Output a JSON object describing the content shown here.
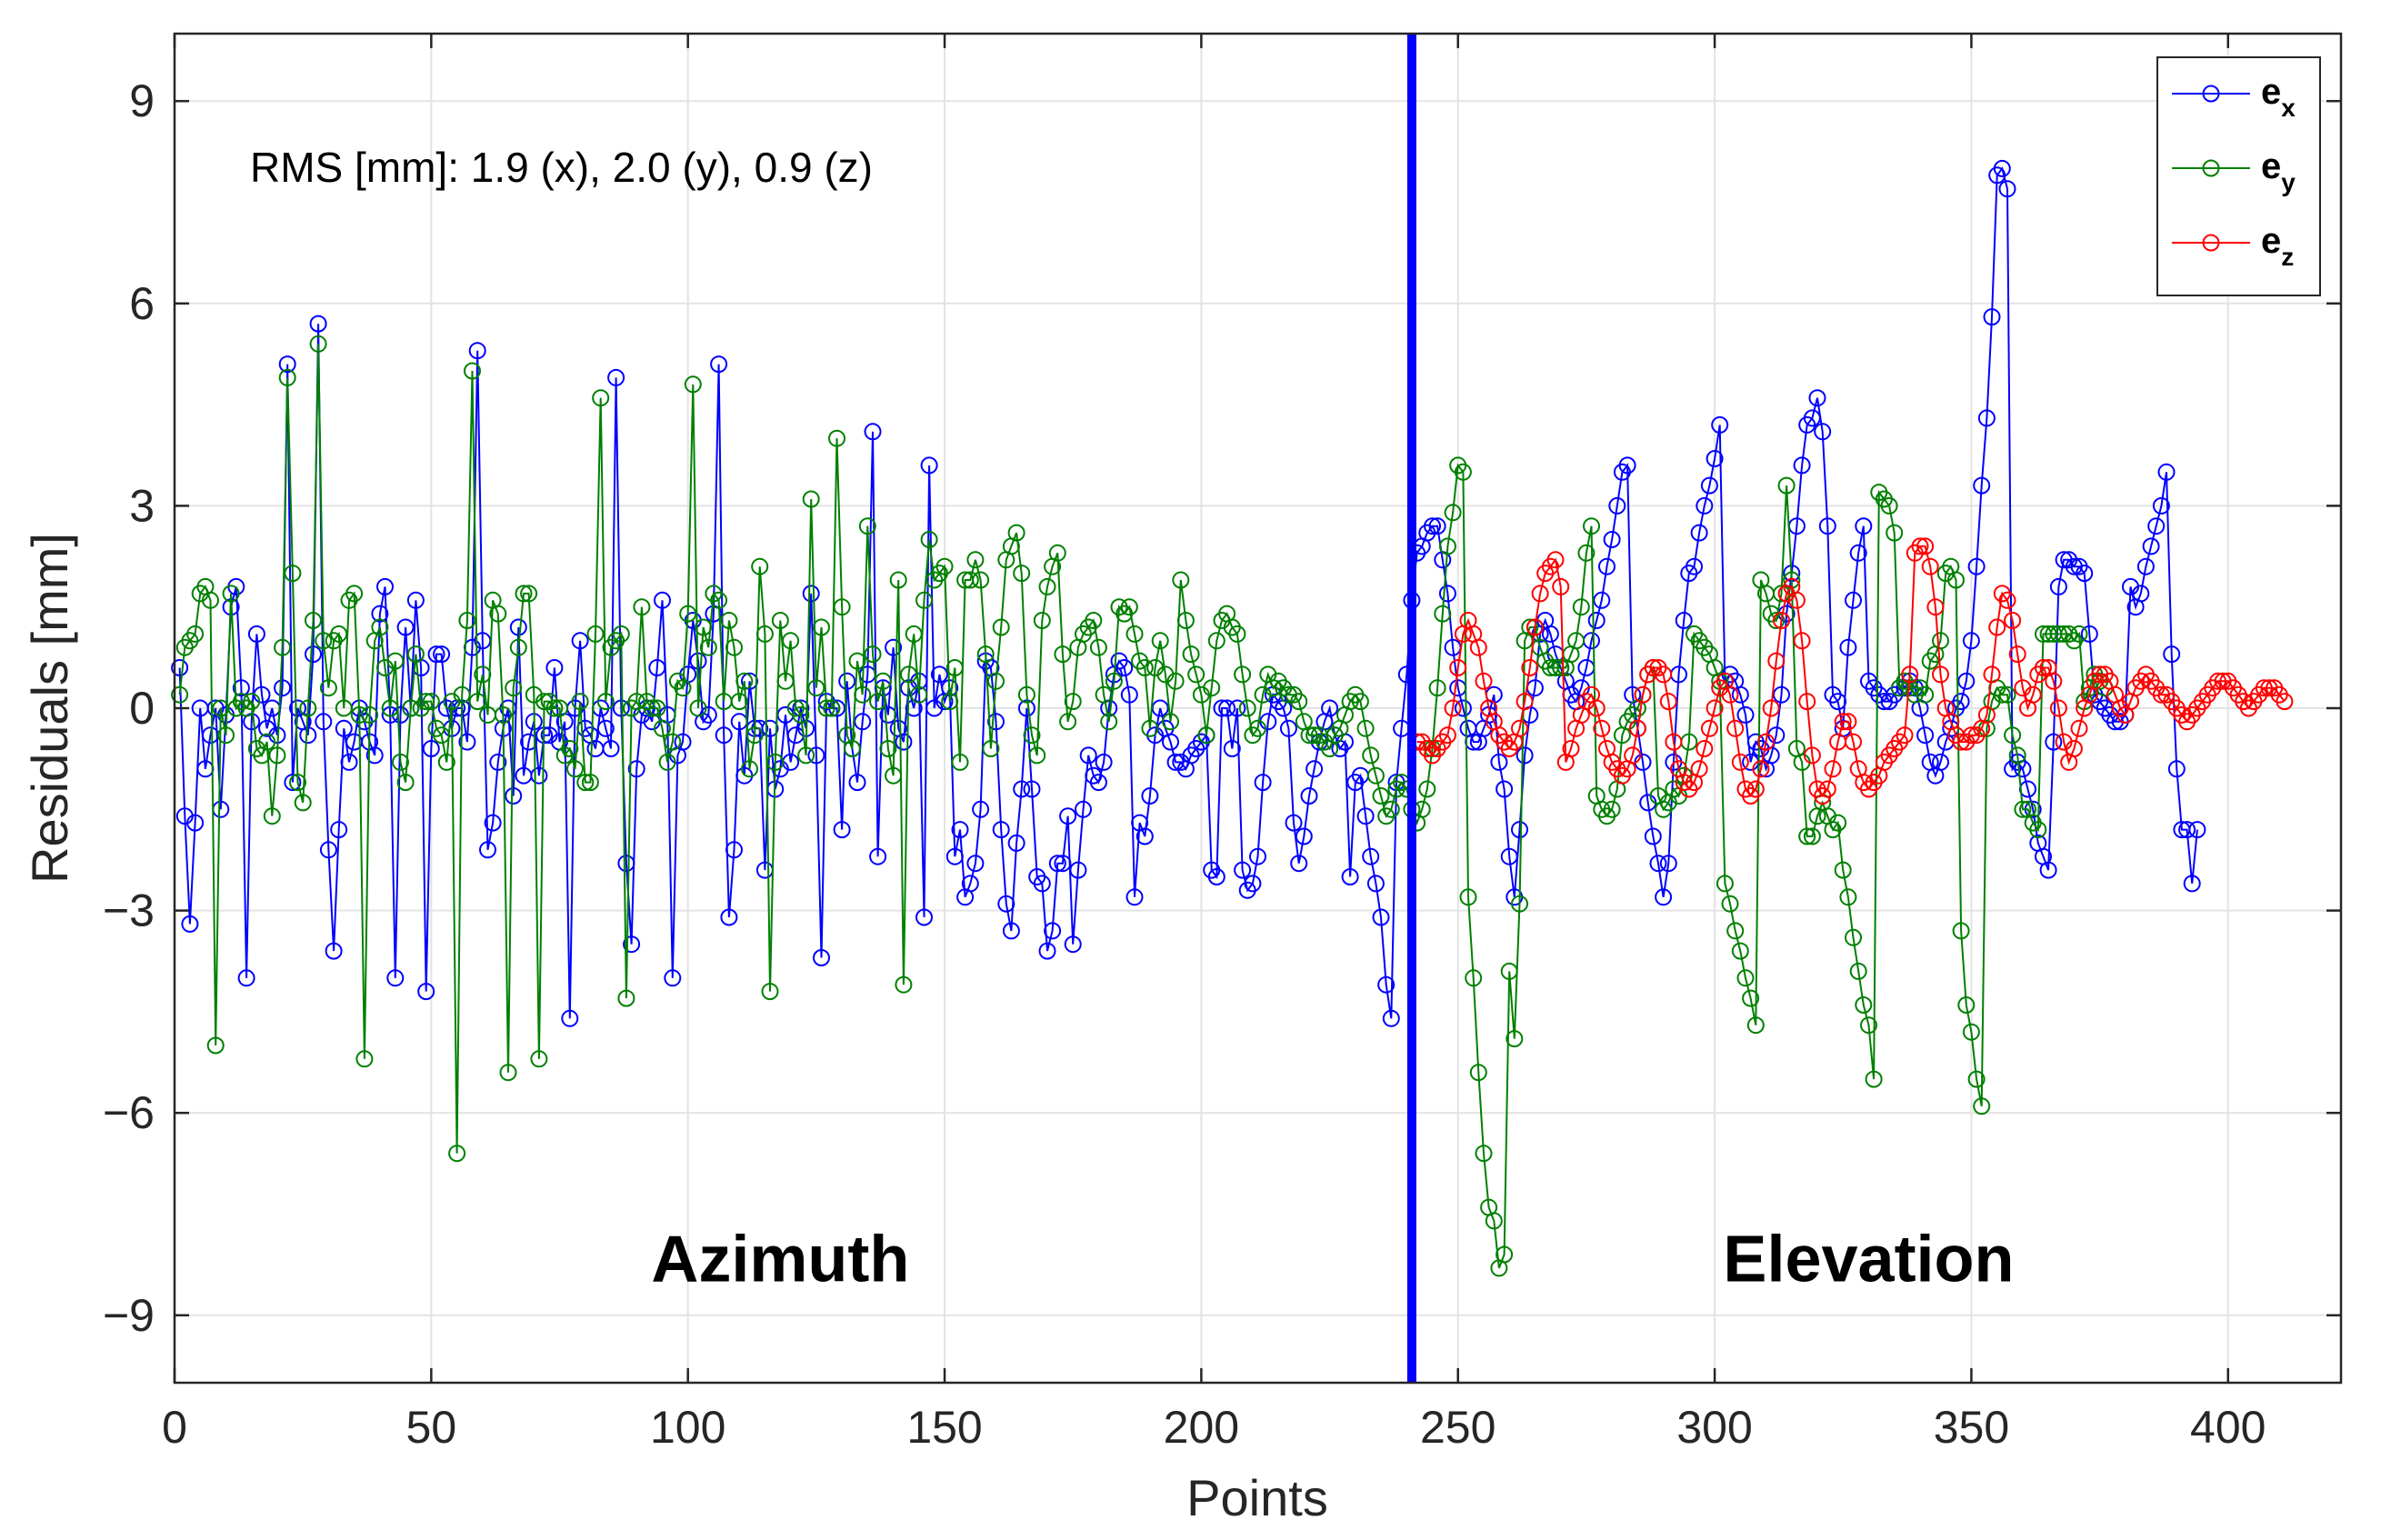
{
  "chart_data": {
    "type": "line",
    "title": "",
    "xlabel": "Points",
    "ylabel": "Residuals [mm]",
    "xlim": [
      0,
      422
    ],
    "ylim": [
      -10,
      10
    ],
    "xticks": [
      0,
      50,
      100,
      150,
      200,
      250,
      300,
      350,
      400
    ],
    "yticks": [
      -9,
      -6,
      -3,
      0,
      3,
      6,
      9
    ],
    "ytick_labels": [
      "−9",
      "−6",
      "−3",
      "0",
      "3",
      "6",
      "9"
    ],
    "grid": true,
    "legend_position": "top-right",
    "annotation": "RMS [mm]: 1.9 (x), 2.0 (y), 0.9 (z)",
    "divider": {
      "x": 241,
      "color": "#0000ff"
    },
    "regions": [
      {
        "label": "Azimuth",
        "x": 118,
        "y": -8.5
      },
      {
        "label": "Elevation",
        "x": 330,
        "y": -8.5
      }
    ],
    "x_start": 1,
    "series": [
      {
        "name": "e_x",
        "base": "e",
        "sub": "x",
        "color": "#0000ff",
        "values": [
          0.6,
          -1.6,
          -3.2,
          -1.7,
          0.0,
          -0.9,
          -0.4,
          0.0,
          -1.5,
          -0.1,
          1.5,
          1.8,
          0.3,
          -4.0,
          -0.2,
          1.1,
          0.2,
          -0.3,
          0.0,
          -0.4,
          0.3,
          5.1,
          -1.1,
          0.0,
          -0.2,
          -0.4,
          0.8,
          5.7,
          -0.2,
          -2.1,
          -3.6,
          -1.8,
          -0.3,
          -0.8,
          -0.5,
          0.0,
          -0.2,
          -0.5,
          -0.7,
          1.4,
          1.8,
          -0.1,
          -4.0,
          -0.1,
          1.2,
          0.0,
          1.6,
          0.6,
          -4.2,
          -0.6,
          0.8,
          0.8,
          0.0,
          -0.3,
          0.0,
          0.0,
          -0.5,
          0.9,
          5.3,
          1.0,
          -2.1,
          -1.7,
          -0.8,
          -0.3,
          0.0,
          -1.3,
          1.2,
          -1.0,
          -0.5,
          -0.2,
          -1.0,
          -0.4,
          -0.4,
          0.6,
          -0.5,
          -0.2,
          -4.6,
          0.0,
          1.0,
          -0.3,
          -0.4,
          -0.6,
          0.0,
          -0.3,
          -0.6,
          4.9,
          0.0,
          -2.3,
          -3.5,
          -0.9,
          -0.1,
          0.0,
          -0.2,
          0.6,
          1.6,
          -0.1,
          -4.0,
          -0.7,
          -0.5,
          0.5,
          1.3,
          0.7,
          -0.2,
          -0.1,
          1.4,
          5.1,
          -0.4,
          -3.1,
          -2.1,
          -0.2,
          -1.0,
          0.4,
          -0.3,
          -0.3,
          -2.4,
          -0.3,
          -1.2,
          -0.9,
          -0.1,
          -0.8,
          -0.4,
          0.0,
          -0.3,
          1.7,
          -0.7,
          -3.7,
          0.1,
          0.0,
          0.0,
          -1.8,
          0.4,
          -0.6,
          -1.1,
          -0.2,
          0.5,
          4.1,
          -2.2,
          0.3,
          -0.1,
          0.9,
          -0.3,
          -0.5,
          0.3,
          0.0,
          0.4,
          -3.1,
          3.6,
          0.0,
          0.5,
          0.1,
          0.3,
          -2.2,
          -1.8,
          -2.8,
          -2.6,
          -2.3,
          -1.5,
          0.7,
          0.6,
          -0.2,
          -1.8,
          -2.9,
          -3.3,
          -2.0,
          -1.2,
          0.0,
          -1.2,
          -2.5,
          -2.6,
          -3.6,
          -3.3,
          -2.3,
          -2.3,
          -1.6,
          -3.5,
          -2.4,
          -1.5,
          -0.7,
          -1.0,
          -1.1,
          -0.8,
          0.0,
          0.5,
          0.7,
          0.6,
          0.2,
          -2.8,
          -1.7,
          -1.9,
          -1.3,
          -0.4,
          0.0,
          -0.3,
          -0.5,
          -0.8,
          -0.8,
          -0.9,
          -0.7,
          -0.6,
          -0.5,
          -0.4,
          -2.4,
          -2.5,
          0.0,
          0.0,
          -0.6,
          0.0,
          -2.4,
          -2.7,
          -2.6,
          -2.2,
          -1.1,
          -0.2,
          0.2,
          0.1,
          0.0,
          -0.3,
          -1.7,
          -2.3,
          -1.9,
          -1.3,
          -0.9,
          -0.5,
          -0.2,
          0.0,
          -0.4,
          -0.6,
          -0.5,
          -2.5,
          -1.1,
          -1.0,
          -1.6,
          -2.2,
          -2.6,
          -3.1,
          -4.1,
          -4.6,
          -1.1,
          -0.3,
          0.5,
          1.6,
          2.3,
          2.4,
          2.6,
          2.7,
          2.7,
          2.2,
          1.7,
          0.9,
          0.3,
          0.0,
          -0.3,
          -0.5,
          -0.5,
          -0.3,
          -0.1,
          0.2,
          -0.8,
          -1.2,
          -2.2,
          -2.8,
          -1.8,
          -0.7,
          -0.1,
          0.3,
          1.1,
          1.3,
          1.1,
          0.8,
          0.6,
          0.4,
          0.2,
          0.1,
          0.3,
          0.6,
          1.0,
          1.3,
          1.6,
          2.1,
          2.5,
          3.0,
          3.5,
          3.6,
          0.2,
          -0.3,
          -0.8,
          -1.4,
          -1.9,
          -2.3,
          -2.8,
          -2.3,
          -0.8,
          0.5,
          1.3,
          2.0,
          2.1,
          2.6,
          3.0,
          3.3,
          3.7,
          4.2,
          0.4,
          0.5,
          0.4,
          0.2,
          -0.1,
          -0.8,
          -0.5,
          -0.6,
          -0.9,
          -0.7,
          -0.4,
          0.2,
          1.4,
          2.0,
          2.7,
          3.6,
          4.2,
          4.3,
          4.6,
          4.1,
          2.7,
          0.2,
          0.1,
          -0.3,
          0.9,
          1.6,
          2.3,
          2.7,
          0.4,
          0.3,
          0.2,
          0.1,
          0.1,
          0.2,
          0.3,
          0.3,
          0.4,
          0.3,
          0.0,
          -0.4,
          -0.8,
          -1.0,
          -0.8,
          -0.5,
          -0.3,
          0.0,
          0.1,
          0.4,
          1.0,
          2.1,
          3.3,
          4.3,
          5.8,
          7.9,
          8.0,
          7.7,
          -0.9,
          -0.8,
          -0.9,
          -1.2,
          -1.5,
          -2.0,
          -2.2,
          -2.4,
          -0.5,
          1.8,
          2.2,
          2.2,
          2.1,
          2.1,
          2.0,
          1.1,
          0.2,
          0.1,
          0.0,
          -0.1,
          -0.2,
          -0.2,
          -0.1,
          1.8,
          1.5,
          1.7,
          2.1,
          2.4,
          2.7,
          3.0,
          3.5,
          0.8,
          -0.9,
          -1.8,
          -1.8,
          -2.6,
          -1.8
        ]
      },
      {
        "name": "e_y",
        "base": "e",
        "sub": "y",
        "color": "#008000",
        "values": [
          0.2,
          0.9,
          1.0,
          1.1,
          1.7,
          1.8,
          1.6,
          -5.0,
          0.0,
          -0.4,
          1.7,
          0.0,
          0.1,
          0.0,
          0.1,
          -0.6,
          -0.7,
          -0.5,
          -1.6,
          -0.7,
          0.9,
          4.9,
          2.0,
          -1.1,
          -1.4,
          0.0,
          1.3,
          5.4,
          1.0,
          0.3,
          1.0,
          1.1,
          0.0,
          1.6,
          1.7,
          -0.1,
          -5.2,
          -0.1,
          1.0,
          1.2,
          0.6,
          0.0,
          0.7,
          -0.8,
          -1.1,
          0.0,
          0.8,
          0.0,
          0.1,
          0.1,
          -0.3,
          -0.4,
          -0.8,
          0.1,
          -6.6,
          0.2,
          1.3,
          5.0,
          0.1,
          0.5,
          -0.1,
          1.6,
          1.4,
          -0.1,
          -5.4,
          0.3,
          0.9,
          1.7,
          1.7,
          0.2,
          -5.2,
          0.1,
          0.1,
          0.0,
          0.0,
          -0.7,
          -0.6,
          -0.9,
          0.1,
          -1.1,
          -1.1,
          1.1,
          4.6,
          0.1,
          0.9,
          1.0,
          1.1,
          -4.3,
          0.0,
          0.1,
          1.5,
          0.1,
          0.0,
          0.0,
          -0.3,
          -0.8,
          -0.5,
          0.4,
          0.3,
          1.4,
          4.8,
          0.0,
          1.2,
          0.9,
          1.7,
          1.6,
          0.1,
          1.3,
          0.9,
          0.1,
          0.4,
          -0.9,
          -0.4,
          2.1,
          1.1,
          -4.2,
          -0.8,
          1.3,
          0.4,
          1.0,
          0.0,
          -0.1,
          -0.7,
          3.1,
          0.3,
          1.2,
          0.0,
          0.0,
          4.0,
          1.5,
          -0.4,
          -0.6,
          0.7,
          0.2,
          2.7,
          0.8,
          0.1,
          0.4,
          -0.6,
          -1.0,
          1.9,
          -4.1,
          0.5,
          1.1,
          0.2,
          1.6,
          2.5,
          1.9,
          2.0,
          2.1,
          0.1,
          0.6,
          -0.8,
          1.9,
          1.9,
          2.2,
          1.9,
          0.8,
          -0.6,
          0.4,
          1.2,
          2.2,
          2.4,
          2.6,
          2.0,
          0.2,
          -0.4,
          -0.7,
          1.3,
          1.8,
          2.1,
          2.3,
          0.8,
          -0.2,
          0.1,
          0.9,
          1.1,
          1.2,
          1.3,
          0.9,
          0.2,
          -0.2,
          0.4,
          1.5,
          1.4,
          1.5,
          1.1,
          0.7,
          0.6,
          -0.3,
          0.6,
          1.0,
          0.5,
          -0.2,
          0.4,
          1.9,
          1.3,
          0.8,
          0.5,
          0.2,
          -0.4,
          0.3,
          1.0,
          1.3,
          1.4,
          1.2,
          1.1,
          0.5,
          0.0,
          -0.4,
          -0.3,
          0.2,
          0.5,
          0.3,
          0.4,
          0.3,
          0.2,
          0.2,
          0.1,
          -0.2,
          -0.4,
          -0.4,
          -0.4,
          -0.5,
          -0.6,
          -0.4,
          -0.3,
          -0.1,
          0.1,
          0.2,
          0.1,
          -0.3,
          -0.7,
          -1.0,
          -1.3,
          -1.6,
          -1.5,
          -1.2,
          -1.1,
          -1.2,
          -1.5,
          -1.7,
          -1.5,
          -1.2,
          -0.6,
          0.3,
          1.4,
          2.4,
          2.9,
          3.6,
          3.5,
          -2.8,
          -4.0,
          -5.4,
          -6.6,
          -7.4,
          -7.6,
          -8.3,
          -8.1,
          -3.9,
          -4.9,
          -2.9,
          1.0,
          1.2,
          1.2,
          0.9,
          0.7,
          0.6,
          0.6,
          0.6,
          0.6,
          0.8,
          1.0,
          1.5,
          2.3,
          2.7,
          -1.3,
          -1.5,
          -1.6,
          -1.5,
          -1.2,
          -0.4,
          -0.2,
          -0.1,
          0.0,
          0.2,
          0.5,
          0.6,
          -1.3,
          -1.5,
          -1.4,
          -1.2,
          -1.3,
          -1.0,
          -0.5,
          1.1,
          1.0,
          0.9,
          0.8,
          0.6,
          0.4,
          -2.6,
          -2.9,
          -3.3,
          -3.6,
          -4.0,
          -4.3,
          -4.7,
          1.9,
          1.7,
          1.4,
          1.3,
          1.7,
          3.3,
          1.9,
          -0.6,
          -0.8,
          -1.9,
          -1.9,
          -1.6,
          -1.4,
          -1.6,
          -1.8,
          -1.7,
          -2.4,
          -2.8,
          -3.4,
          -3.9,
          -4.4,
          -4.7,
          -5.5,
          3.2,
          3.1,
          3.0,
          2.6,
          0.3,
          0.4,
          0.3,
          0.2,
          0.3,
          0.2,
          0.7,
          0.8,
          1.0,
          2.0,
          2.1,
          1.9,
          -3.3,
          -4.4,
          -4.8,
          -5.5,
          -5.9,
          -0.3,
          0.1,
          0.3,
          0.2,
          0.2,
          -0.4,
          -0.7,
          -1.5,
          -1.5,
          -1.7,
          -1.8,
          1.1,
          1.1,
          1.1,
          1.1,
          1.1,
          1.1,
          1.0,
          1.1,
          0.1,
          0.3,
          0.5,
          0.4,
          0.3
        ]
      },
      {
        "name": "e_z",
        "base": "e",
        "sub": "z",
        "color": "#ff0000",
        "x_start": 242,
        "values": [
          -0.5,
          -0.5,
          -0.6,
          -0.7,
          -0.6,
          -0.5,
          -0.4,
          0.0,
          0.6,
          1.1,
          1.3,
          1.1,
          0.9,
          0.4,
          0.0,
          -0.2,
          -0.4,
          -0.5,
          -0.6,
          -0.5,
          -0.3,
          0.1,
          0.6,
          1.2,
          1.7,
          2.0,
          2.1,
          2.2,
          1.8,
          -0.8,
          -0.6,
          -0.3,
          -0.1,
          0.1,
          0.2,
          0.0,
          -0.3,
          -0.6,
          -0.8,
          -0.9,
          -1.0,
          -0.9,
          -0.7,
          -0.3,
          0.2,
          0.5,
          0.6,
          0.6,
          0.5,
          0.1,
          -0.5,
          -0.9,
          -1.1,
          -1.2,
          -1.1,
          -0.9,
          -0.6,
          -0.3,
          0.0,
          0.3,
          0.4,
          0.2,
          -0.3,
          -0.8,
          -1.2,
          -1.3,
          -1.2,
          -0.9,
          -0.5,
          0.0,
          0.7,
          1.3,
          1.7,
          1.8,
          1.6,
          1.0,
          0.1,
          -0.7,
          -1.2,
          -1.3,
          -1.2,
          -0.9,
          -0.5,
          -0.2,
          -0.2,
          -0.5,
          -0.9,
          -1.1,
          -1.2,
          -1.1,
          -1.0,
          -0.8,
          -0.7,
          -0.6,
          -0.5,
          -0.4,
          0.5,
          2.3,
          2.4,
          2.4,
          2.1,
          1.5,
          0.5,
          0.0,
          -0.2,
          -0.4,
          -0.5,
          -0.5,
          -0.4,
          -0.4,
          -0.3,
          -0.1,
          0.5,
          1.2,
          1.7,
          1.6,
          1.3,
          0.8,
          0.3,
          0.0,
          0.2,
          0.5,
          0.6,
          0.6,
          0.4,
          0.0,
          -0.5,
          -0.8,
          -0.6,
          -0.3,
          0.0,
          0.2,
          0.4,
          0.5,
          0.5,
          0.4,
          0.2,
          0.0,
          -0.1,
          0.1,
          0.3,
          0.4,
          0.5,
          0.4,
          0.3,
          0.2,
          0.2,
          0.1,
          0.0,
          -0.1,
          -0.2,
          -0.1,
          0.0,
          0.1,
          0.2,
          0.3,
          0.4,
          0.4,
          0.4,
          0.3,
          0.2,
          0.1,
          0.0,
          0.1,
          0.2,
          0.3,
          0.3,
          0.3,
          0.2,
          0.1
        ]
      }
    ]
  }
}
